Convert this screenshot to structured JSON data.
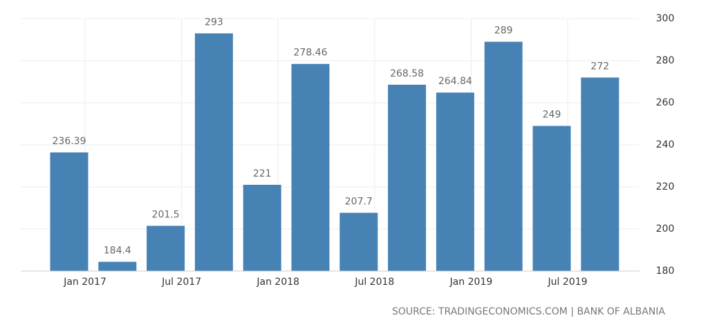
{
  "chart_data": {
    "type": "bar",
    "categories": [
      null,
      null,
      null,
      null,
      null,
      null,
      null,
      null,
      null,
      null,
      null,
      null
    ],
    "values": [
      236.39,
      184.4,
      201.5,
      293,
      221,
      278.46,
      207.7,
      268.58,
      264.84,
      289,
      249,
      272
    ],
    "color": "#4682b4",
    "ylim": [
      180,
      300
    ],
    "yticks": [
      180,
      200,
      220,
      240,
      260,
      280,
      300
    ],
    "xticks": [
      {
        "value": 0.33,
        "label": "Jan 2017"
      },
      {
        "value": 2.33,
        "label": "Jul 2017"
      },
      {
        "value": 4.33,
        "label": "Jan 2018"
      },
      {
        "value": 6.33,
        "label": "Jul 2018"
      },
      {
        "value": 8.33,
        "label": "Jan 2019"
      },
      {
        "value": 10.33,
        "label": "Jul 2019"
      }
    ],
    "grid": true,
    "source": "SOURCE: TRADINGECONOMICS.COM | BANK OF ALBANIA"
  }
}
